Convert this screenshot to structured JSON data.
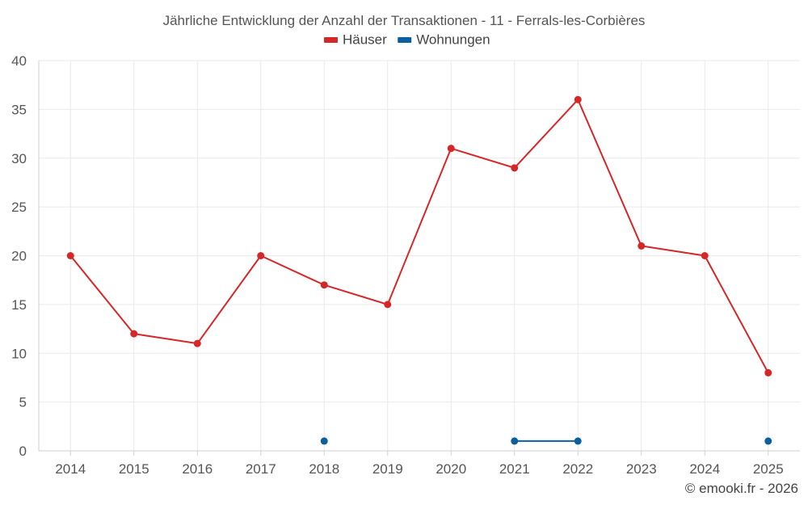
{
  "chart_data": {
    "type": "line",
    "title": "Jährliche Entwicklung der Anzahl der Transaktionen - 11 - Ferrals-les-Corbières",
    "categories": [
      "2014",
      "2015",
      "2016",
      "2017",
      "2018",
      "2019",
      "2020",
      "2021",
      "2022",
      "2023",
      "2024",
      "2025"
    ],
    "ylim": [
      0,
      40
    ],
    "yticks": [
      0,
      5,
      10,
      15,
      20,
      25,
      30,
      35,
      40
    ],
    "grid": true,
    "legend_position": "top-center",
    "series": [
      {
        "name": "Häuser",
        "color": "#d62728",
        "values": [
          20,
          12,
          11,
          20,
          17,
          15,
          31,
          29,
          36,
          21,
          20,
          8
        ]
      },
      {
        "name": "Wohnungen",
        "color": "#0a5f9e",
        "values": [
          null,
          null,
          null,
          null,
          1,
          null,
          null,
          1,
          1,
          null,
          null,
          1
        ]
      }
    ],
    "credit": "© emooki.fr - 2026"
  }
}
